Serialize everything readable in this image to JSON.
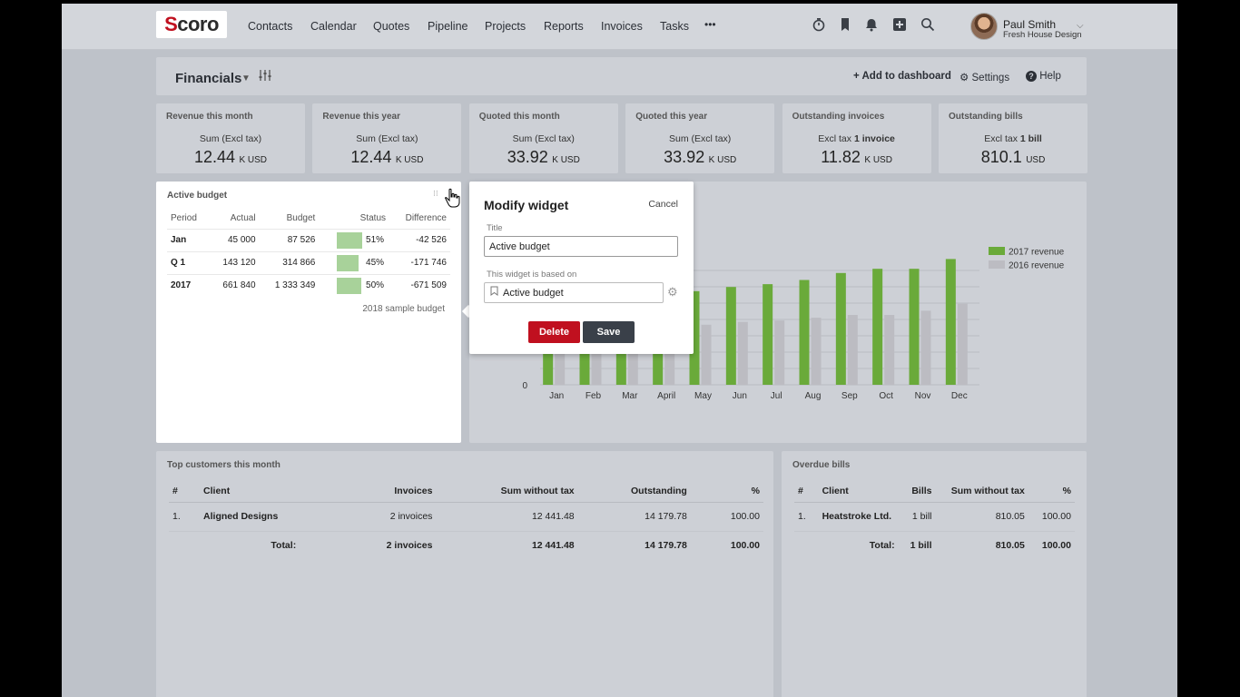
{
  "app": {
    "logo_s": "S",
    "logo_rest": "coro"
  },
  "nav": {
    "items": [
      "Contacts",
      "Calendar",
      "Quotes",
      "Pipeline",
      "Projects",
      "Reports",
      "Invoices",
      "Tasks"
    ],
    "more": "•••"
  },
  "user": {
    "name": "Paul Smith",
    "company": "Fresh House Design"
  },
  "page": {
    "title": "Financials",
    "add_dashboard": "Add to dashboard",
    "settings": "Settings",
    "help": "Help"
  },
  "kpis": [
    {
      "title": "Revenue this month",
      "label": "Sum (Excl tax)",
      "label_bold": "",
      "value": "12.44",
      "unit": "K USD"
    },
    {
      "title": "Revenue this year",
      "label": "Sum (Excl tax)",
      "label_bold": "",
      "value": "12.44",
      "unit": "K USD"
    },
    {
      "title": "Quoted this month",
      "label": "Sum (Excl tax)",
      "label_bold": "",
      "value": "33.92",
      "unit": "K USD"
    },
    {
      "title": "Quoted this year",
      "label": "Sum (Excl tax)",
      "label_bold": "",
      "value": "33.92",
      "unit": "K USD"
    },
    {
      "title": "Outstanding invoices",
      "label": "Excl tax",
      "label_bold": "1 invoice",
      "value": "11.82",
      "unit": "K USD"
    },
    {
      "title": "Outstanding bills",
      "label": "Excl tax",
      "label_bold": "1 bill",
      "value": "810.1",
      "unit": "USD"
    }
  ],
  "budget": {
    "title": "Active budget",
    "columns": [
      "Period",
      "Actual",
      "Budget",
      "Status",
      "Difference"
    ],
    "rows": [
      {
        "period": "Jan",
        "actual": "45 000",
        "budget": "87 526",
        "status": "51%",
        "status_fraction": 0.51,
        "difference": "-42 526"
      },
      {
        "period": "Q 1",
        "actual": "143 120",
        "budget": "314 866",
        "status": "45%",
        "status_fraction": 0.45,
        "difference": "-171 746"
      },
      {
        "period": "2017",
        "actual": "661 840",
        "budget": "1 333 349",
        "status": "50%",
        "status_fraction": 0.5,
        "difference": "-671 509"
      }
    ],
    "footer": "2018 sample budget"
  },
  "modal": {
    "title": "Modify widget",
    "cancel": "Cancel",
    "title_label": "Title",
    "title_value": "Active budget",
    "based_label": "This widget is based on",
    "based_value": "Active budget",
    "delete": "Delete",
    "save": "Save"
  },
  "chart_data": {
    "type": "bar",
    "categories": [
      "Jan",
      "Feb",
      "Mar",
      "April",
      "May",
      "Jun",
      "Jul",
      "Aug",
      "Sep",
      "Oct",
      "Nov",
      "Dec"
    ],
    "series": [
      {
        "name": "2017 revenue",
        "color": "#6aaa3a",
        "values": [
          62,
          58,
          60,
          64,
          67,
          70,
          72,
          75,
          80,
          83,
          83,
          90
        ]
      },
      {
        "name": "2016 revenue",
        "color": "#bcbcc2",
        "values": [
          30,
          28,
          32,
          33,
          43,
          45,
          46,
          48,
          50,
          50,
          53,
          58
        ]
      }
    ],
    "y_tick_label": "0",
    "ylim": [
      0,
      100
    ],
    "legend": "top-right"
  },
  "top_customers": {
    "title": "Top customers this month",
    "columns": [
      "#",
      "Client",
      "Invoices",
      "Sum without tax",
      "Outstanding",
      "%"
    ],
    "rows": [
      {
        "num": "1.",
        "client": "Aligned Designs",
        "invoices": "2 invoices",
        "sum": "12 441.48",
        "outstanding": "14 179.78",
        "pct": "100.00"
      }
    ],
    "total": {
      "label": "Total:",
      "invoices": "2 invoices",
      "sum": "12 441.48",
      "outstanding": "14 179.78",
      "pct": "100.00"
    }
  },
  "overdue": {
    "title": "Overdue bills",
    "columns": [
      "#",
      "Client",
      "Bills",
      "Sum without tax",
      "%"
    ],
    "rows": [
      {
        "num": "1.",
        "client": "Heatstroke Ltd.",
        "bills": "1 bill",
        "sum": "810.05",
        "pct": "100.00"
      }
    ],
    "total": {
      "label": "Total:",
      "bills": "1 bill",
      "sum": "810.05",
      "pct": "100.00"
    }
  }
}
